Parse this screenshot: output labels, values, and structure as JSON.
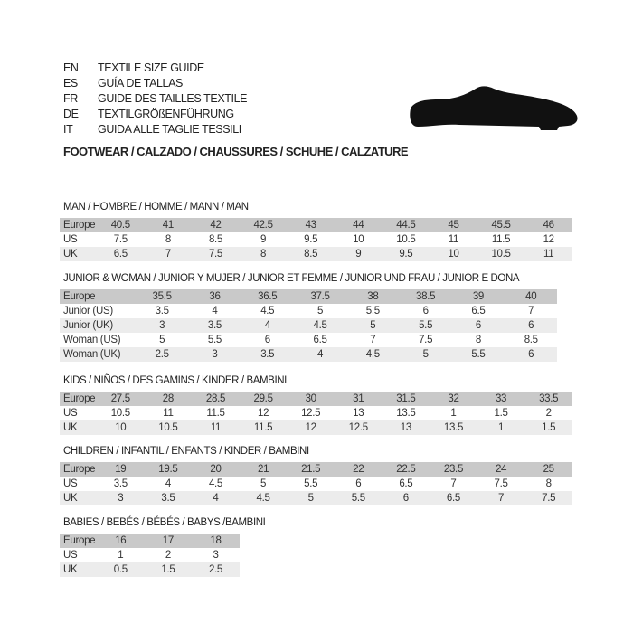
{
  "header": {
    "lines": [
      {
        "code": "EN",
        "text": "TEXTILE SIZE GUIDE"
      },
      {
        "code": "ES",
        "text": "GUÍA DE TALLAS"
      },
      {
        "code": "FR",
        "text": "GUIDE DES TAILLES TEXTILE"
      },
      {
        "code": "DE",
        "text": "TEXTILGRÖßENFÜHRUNG"
      },
      {
        "code": "IT",
        "text": "GUIDA ALLE TAGLIE TESSILI"
      }
    ],
    "footwear": "FOOTWEAR / CALZADO / CHAUSSURES / SCHUHE / CALZATURE",
    "icon": "shoe-icon"
  },
  "colors": {
    "header_row": "#c9c9c9",
    "alt_row": "#ececec"
  },
  "sections": [
    {
      "title": "MAN / HOMBRE / HOMME / MANN / MAN",
      "rows": [
        {
          "label": "Europe",
          "values": [
            "40.5",
            "41",
            "42",
            "42.5",
            "43",
            "44",
            "44.5",
            "45",
            "45.5",
            "46"
          ]
        },
        {
          "label": "US",
          "values": [
            "7.5",
            "8",
            "8.5",
            "9",
            "9.5",
            "10",
            "10.5",
            "11",
            "11.5",
            "12"
          ]
        },
        {
          "label": "UK",
          "values": [
            "6.5",
            "7",
            "7.5",
            "8",
            "8.5",
            "9",
            "9.5",
            "10",
            "10.5",
            "11"
          ]
        }
      ]
    },
    {
      "title": "JUNIOR & WOMAN / JUNIOR Y MUJER / JUNIOR ET FEMME / JUNIOR UND FRAU / JUNIOR E DONA",
      "rows": [
        {
          "label": "Europe",
          "values": [
            "35.5",
            "36",
            "36.5",
            "37.5",
            "38",
            "38.5",
            "39",
            "40"
          ]
        },
        {
          "label": "Junior (US)",
          "values": [
            "3.5",
            "4",
            "4.5",
            "5",
            "5.5",
            "6",
            "6.5",
            "7"
          ]
        },
        {
          "label": "Junior (UK)",
          "values": [
            "3",
            "3.5",
            "4",
            "4.5",
            "5",
            "5.5",
            "6",
            "6"
          ]
        },
        {
          "label": "Woman (US)",
          "values": [
            "5",
            "5.5",
            "6",
            "6.5",
            "7",
            "7.5",
            "8",
            "8.5"
          ]
        },
        {
          "label": "Woman (UK)",
          "values": [
            "2.5",
            "3",
            "3.5",
            "4",
            "4.5",
            "5",
            "5.5",
            "6"
          ]
        }
      ]
    },
    {
      "title": "KIDS / NIÑOS / DES GAMINS / KINDER / BAMBINI",
      "rows": [
        {
          "label": "Europe",
          "values": [
            "27.5",
            "28",
            "28.5",
            "29.5",
            "30",
            "31",
            "31.5",
            "32",
            "33",
            "33.5"
          ]
        },
        {
          "label": "US",
          "values": [
            "10.5",
            "11",
            "11.5",
            "12",
            "12.5",
            "13",
            "13.5",
            "1",
            "1.5",
            "2"
          ]
        },
        {
          "label": "UK",
          "values": [
            "10",
            "10.5",
            "11",
            "11.5",
            "12",
            "12.5",
            "13",
            "13.5",
            "1",
            "1.5"
          ]
        }
      ]
    },
    {
      "title": "CHILDREN / INFANTIL / ENFANTS / KINDER / BAMBINI",
      "rows": [
        {
          "label": "Europe",
          "values": [
            "19",
            "19.5",
            "20",
            "21",
            "21.5",
            "22",
            "22.5",
            "23.5",
            "24",
            "25"
          ]
        },
        {
          "label": "US",
          "values": [
            "3.5",
            "4",
            "4.5",
            "5",
            "5.5",
            "6",
            "6.5",
            "7",
            "7.5",
            "8"
          ]
        },
        {
          "label": "UK",
          "values": [
            "3",
            "3.5",
            "4",
            "4.5",
            "5",
            "5.5",
            "6",
            "6.5",
            "7",
            "7.5"
          ]
        }
      ]
    },
    {
      "title": "BABIES  / BEBÉS / BÉBÉS / BABYS /BAMBINI",
      "rows": [
        {
          "label": "Europe",
          "values": [
            "16",
            "17",
            "18"
          ]
        },
        {
          "label": "US",
          "values": [
            "1",
            "2",
            "3"
          ]
        },
        {
          "label": "UK",
          "values": [
            "0.5",
            "1.5",
            "2.5"
          ]
        }
      ]
    }
  ]
}
